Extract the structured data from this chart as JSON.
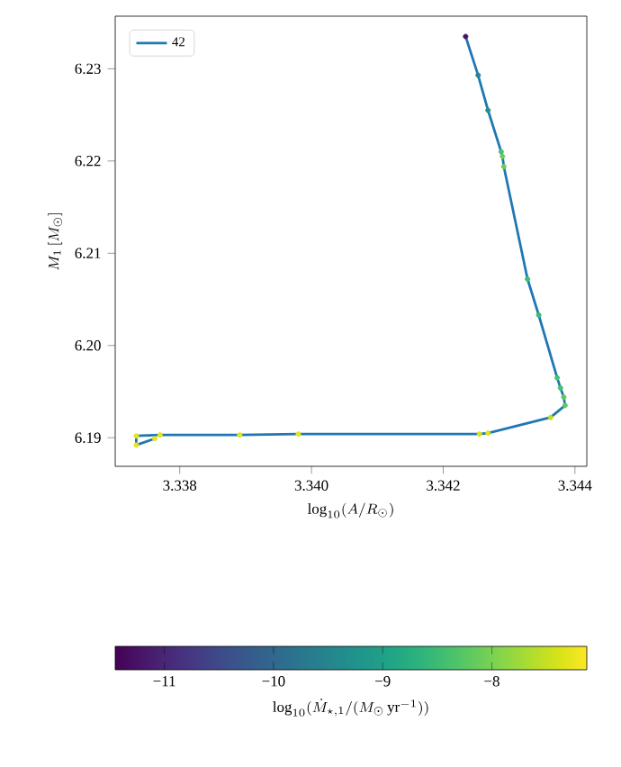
{
  "chart_data": {
    "type": "line",
    "xlabel": "\\log_{10}(A/R_\\odot)",
    "ylabel": "M_1\\,[M_\\odot]",
    "clabel": "\\log_{10}(\\dot{M}_{\\star,1}/(M_\\odot\\,\\mathrm{yr}^{-1}))",
    "xlim": [
      3.33702,
      3.34418
    ],
    "ylim": [
      6.1869,
      6.2357
    ],
    "xticks": [
      3.338,
      {
        "value": 3.34,
        "label": "3.340"
      },
      3.342,
      3.344
    ],
    "yticks": [
      6.19,
      {
        "value": 6.2,
        "label": "6.20"
      },
      6.21,
      6.22,
      6.23
    ],
    "clim": [
      -11.45,
      -7.13
    ],
    "cticks": [
      {
        "value": -11,
        "label": "−11"
      },
      {
        "value": -10,
        "label": "−10"
      },
      {
        "value": -9,
        "label": "−9"
      },
      {
        "value": -8,
        "label": "−8"
      }
    ],
    "legend": "top left",
    "series": [
      {
        "name": "42",
        "color": "#1f77b4",
        "x": [
          3.34234,
          3.34253,
          3.34268,
          3.34288,
          3.3429,
          3.34292,
          3.34328,
          3.34345,
          3.34373,
          3.34378,
          3.34383,
          3.34385,
          3.34363,
          3.34268,
          3.34255,
          3.3398,
          3.33891,
          3.3377,
          3.33734,
          3.33734,
          3.33762
        ],
        "values": [
          6.2335,
          6.2293,
          6.2255,
          6.221,
          6.2205,
          6.2194,
          6.2072,
          6.2033,
          6.1965,
          6.1954,
          6.1944,
          6.1935,
          6.1922,
          6.1905,
          6.1904,
          6.1904,
          6.1903,
          6.1903,
          6.1902,
          6.1892,
          6.1899
        ]
      },
      {
        "type": "scatter",
        "marker": "circle",
        "x": [
          3.34234,
          3.34253,
          3.34268,
          3.34288,
          3.3429,
          3.34292,
          3.34328,
          3.34345,
          3.34373,
          3.34378,
          3.34383,
          3.34385,
          3.34363,
          3.34268,
          3.34255,
          3.3398,
          3.33891,
          3.3377,
          3.33734,
          3.33734,
          3.33762
        ],
        "values": [
          6.2335,
          6.2293,
          6.2255,
          6.221,
          6.2205,
          6.2194,
          6.2072,
          6.2033,
          6.1965,
          6.1954,
          6.1944,
          6.1935,
          6.1922,
          6.1905,
          6.1904,
          6.1904,
          6.1903,
          6.1903,
          6.1902,
          6.1892,
          6.1899
        ],
        "colors": [
          "#471365",
          "#25858e",
          "#21918c",
          "#4ac16d",
          "#6ccd5a",
          "#6ccd5a",
          "#3fbc73",
          "#3fbc73",
          "#4ac16d",
          "#4ac16d",
          "#5ec962",
          "#5ec962",
          "#c0df25",
          "#dde318",
          "#dde318",
          "#eae51a",
          "#eae51a",
          "#eae51a",
          "#eae51a",
          "#eae51a",
          "#eae51a"
        ],
        "cvalues": [
          -11.2,
          -9.4,
          -9.3,
          -8.4,
          -8.1,
          -8.1,
          -8.5,
          -8.5,
          -8.4,
          -8.4,
          -8.2,
          -8.2,
          -7.6,
          -7.4,
          -7.4,
          -7.3,
          -7.3,
          -7.3,
          -7.3,
          -7.3,
          -7.3
        ]
      }
    ]
  }
}
